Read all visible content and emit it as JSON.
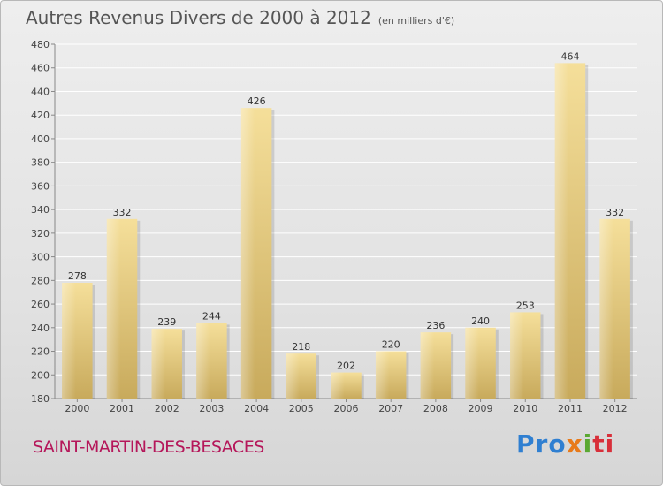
{
  "header": {
    "title": "Autres Revenus Divers de 2000 à 2012",
    "unit": "(en milliers d'€)"
  },
  "footer": {
    "commune": "SAINT-MARTIN-DES-BESACES",
    "logo": [
      "Pro",
      "x",
      "i",
      "ti"
    ]
  },
  "colors": {
    "bar_light": "#f5df9a",
    "bar_dark": "#c8aa5c",
    "grid": "#ffffff",
    "axis": "#888888",
    "title": "#555555",
    "commune": "#b5175a"
  },
  "chart_data": {
    "type": "bar",
    "title": "Autres Revenus Divers de 2000 à 2012",
    "subtitle": "(en milliers d'€)",
    "categories": [
      "2000",
      "2001",
      "2002",
      "2003",
      "2004",
      "2005",
      "2006",
      "2007",
      "2008",
      "2009",
      "2010",
      "2011",
      "2012"
    ],
    "values": [
      278,
      332,
      239,
      244,
      426,
      218,
      202,
      220,
      236,
      240,
      253,
      464,
      332
    ],
    "ylim": [
      180,
      480
    ],
    "yticks": [
      180,
      200,
      220,
      240,
      260,
      280,
      300,
      320,
      340,
      360,
      380,
      400,
      420,
      440,
      460,
      480
    ],
    "grid": true,
    "data_labels": true
  }
}
